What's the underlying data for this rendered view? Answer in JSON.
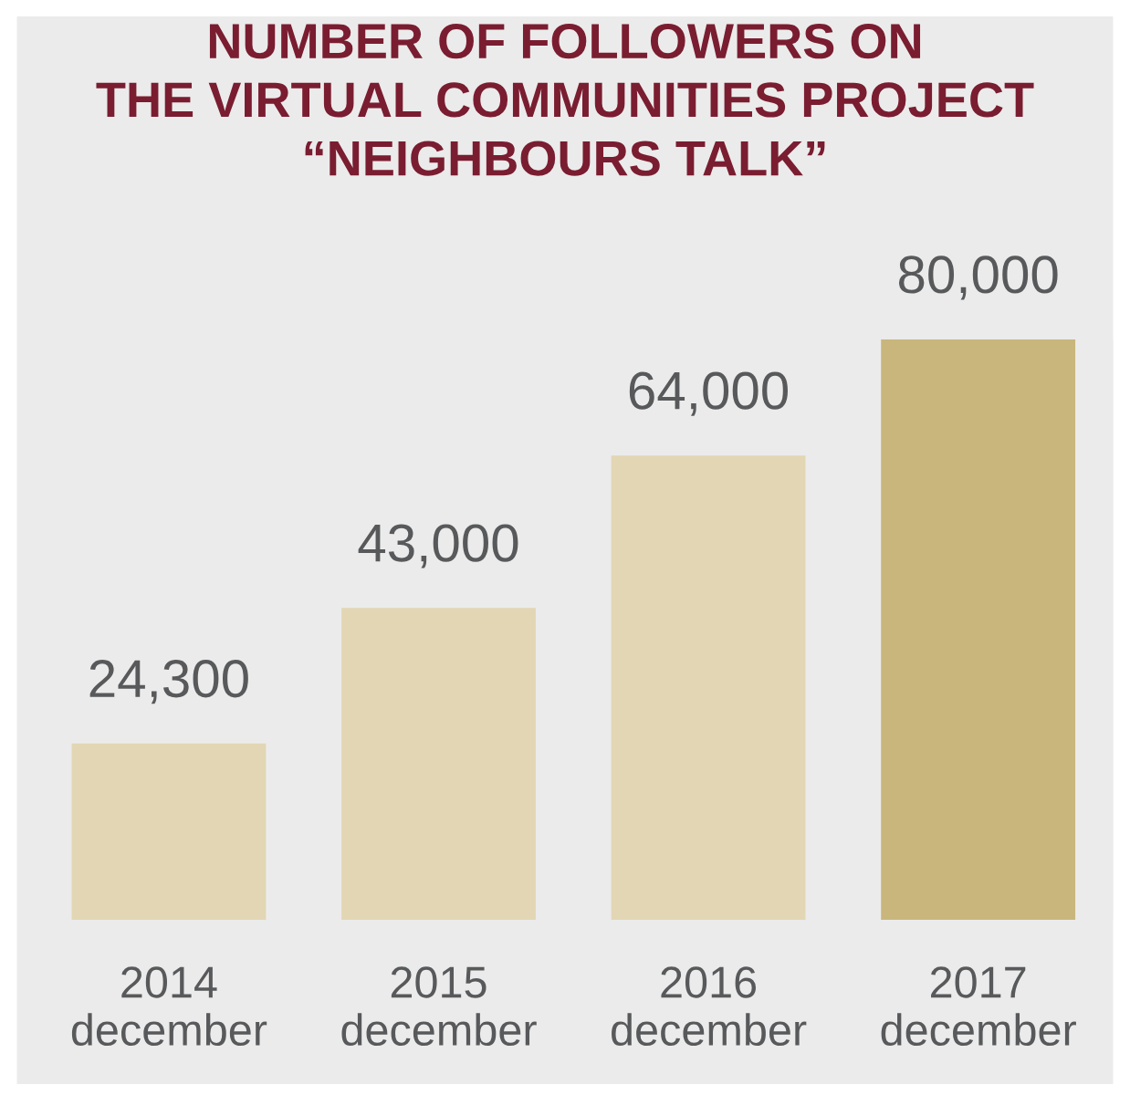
{
  "chart_data": {
    "type": "bar",
    "title": "NUMBER OF FOLLOWERS ON\nTHE VIRTUAL COMMUNITIES PROJECT\n“NEIGHBOURS TALK”",
    "categories": [
      "2014\ndecember",
      "2015\ndecember",
      "2016\ndecember",
      "2017\ndecember"
    ],
    "values": [
      24300,
      43000,
      64000,
      80000
    ],
    "colors": [
      "#e2d6b4",
      "#e2d6b4",
      "#e2d6b4",
      "#c9b67c"
    ],
    "value_labels": [
      "24,300",
      "43,000",
      "64,000",
      "80,000"
    ],
    "grid": false,
    "legend": false
  }
}
